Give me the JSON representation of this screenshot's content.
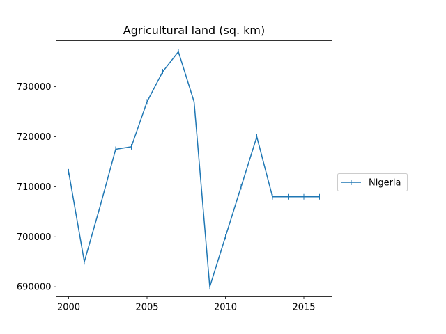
{
  "chart_data": {
    "type": "line",
    "title": "Agricultural land (sq. km)",
    "xlabel": "",
    "ylabel": "",
    "x": [
      2000,
      2001,
      2002,
      2003,
      2004,
      2005,
      2006,
      2007,
      2008,
      2009,
      2010,
      2011,
      2012,
      2013,
      2014,
      2015,
      2016
    ],
    "series": [
      {
        "name": "Nigeria",
        "color": "#1f77b4",
        "marker": "vertical-tick",
        "values": [
          713000,
          695000,
          706000,
          717500,
          718000,
          727000,
          733000,
          737000,
          727000,
          690000,
          700000,
          710000,
          720000,
          708000,
          708000,
          708000,
          708000
        ]
      }
    ],
    "xlim": [
      1999.2,
      2016.8
    ],
    "ylim": [
      688000,
      739200
    ],
    "xticks": [
      2000,
      2005,
      2010,
      2015
    ],
    "yticks": [
      690000,
      700000,
      710000,
      720000,
      730000
    ],
    "grid": false,
    "legend_position": "right-outside"
  }
}
